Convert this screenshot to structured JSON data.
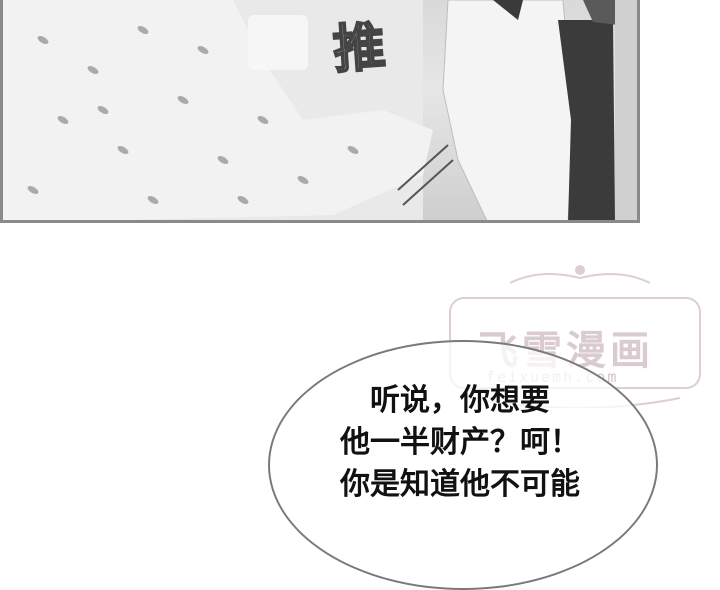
{
  "panel": {
    "sound_effect": "推"
  },
  "watermark": {
    "title": "飞雪漫画",
    "subtitle": "feixuemh.com"
  },
  "speech_bubble": {
    "lines": [
      "听说，你想要",
      "他一半财产？呵！",
      "你是知道他不可能"
    ]
  }
}
